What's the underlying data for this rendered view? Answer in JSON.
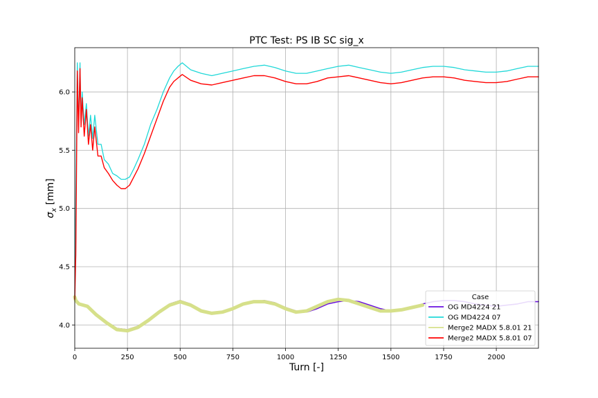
{
  "chart_data": {
    "type": "line",
    "title": "PTC Test: PS IB SC sig_x",
    "xlabel": "Turn [-]",
    "ylabel_main": "σ",
    "ylabel_sub": "x",
    "ylabel_unit": " [mm]",
    "xlim": [
      0,
      2200
    ],
    "ylim": [
      3.8,
      6.38
    ],
    "xticks": [
      0,
      250,
      500,
      750,
      1000,
      1250,
      1500,
      1750,
      2000
    ],
    "yticks": [
      4.0,
      4.5,
      5.0,
      5.5,
      6.0
    ],
    "xtick_labels": [
      "0",
      "250",
      "500",
      "750",
      "1000",
      "1250",
      "1500",
      "1750",
      "2000"
    ],
    "ytick_labels": [
      "4.0",
      "4.5",
      "5.0",
      "5.5",
      "6.0"
    ],
    "grid": true,
    "legend_title": "Case",
    "legend_position": "lower-right",
    "series": [
      {
        "name": "OG MD4224 21",
        "color": "#6a0fe0",
        "x": [
          0,
          5,
          20,
          60,
          100,
          150,
          200,
          250,
          300,
          350,
          400,
          450,
          500,
          550,
          600,
          650,
          700,
          750,
          800,
          850,
          900,
          950,
          1000,
          1050,
          1100,
          1150,
          1200,
          1250,
          1300,
          1350,
          1400,
          1450,
          1500,
          1550,
          1600,
          1650,
          1700,
          1750,
          1800,
          1850,
          1900,
          1950,
          2000,
          2050,
          2100,
          2150,
          2200
        ],
        "y": [
          4.24,
          4.22,
          4.18,
          4.16,
          4.1,
          4.03,
          3.97,
          3.96,
          3.99,
          4.05,
          4.12,
          4.18,
          4.21,
          4.18,
          4.12,
          4.1,
          4.11,
          4.14,
          4.18,
          4.2,
          4.21,
          4.19,
          4.15,
          4.12,
          4.11,
          4.14,
          4.18,
          4.2,
          4.21,
          4.2,
          4.17,
          4.14,
          4.12,
          4.13,
          4.15,
          4.18,
          4.2,
          4.21,
          4.21,
          4.2,
          4.18,
          4.17,
          4.16,
          4.17,
          4.18,
          4.2,
          4.2
        ]
      },
      {
        "name": "OG MD4224 07",
        "color": "#1fd8d8",
        "x": [
          0,
          5,
          12,
          18,
          25,
          30,
          35,
          45,
          55,
          65,
          75,
          85,
          95,
          110,
          125,
          140,
          160,
          180,
          200,
          220,
          240,
          260,
          280,
          300,
          330,
          360,
          390,
          420,
          450,
          470,
          490,
          510,
          550,
          600,
          650,
          700,
          750,
          800,
          850,
          900,
          950,
          1000,
          1050,
          1100,
          1150,
          1200,
          1250,
          1300,
          1350,
          1400,
          1450,
          1500,
          1550,
          1600,
          1650,
          1700,
          1750,
          1800,
          1850,
          1900,
          1950,
          2000,
          2050,
          2100,
          2150,
          2200
        ],
        "y": [
          4.25,
          5.1,
          6.25,
          5.7,
          6.25,
          5.75,
          6.0,
          5.72,
          5.9,
          5.62,
          5.8,
          5.6,
          5.8,
          5.55,
          5.55,
          5.42,
          5.38,
          5.3,
          5.28,
          5.25,
          5.25,
          5.27,
          5.34,
          5.42,
          5.55,
          5.72,
          5.85,
          6.0,
          6.12,
          6.18,
          6.22,
          6.25,
          6.19,
          6.16,
          6.14,
          6.16,
          6.18,
          6.2,
          6.22,
          6.23,
          6.21,
          6.18,
          6.16,
          6.16,
          6.18,
          6.2,
          6.22,
          6.23,
          6.21,
          6.19,
          6.17,
          6.16,
          6.17,
          6.19,
          6.21,
          6.22,
          6.22,
          6.21,
          6.19,
          6.18,
          6.17,
          6.17,
          6.18,
          6.2,
          6.22,
          6.22
        ]
      },
      {
        "name": "Merge2 MADX 5.8.01 21",
        "color": "#d6e08a",
        "x": [
          0,
          5,
          20,
          60,
          100,
          150,
          200,
          250,
          300,
          350,
          400,
          450,
          500,
          550,
          600,
          650,
          700,
          750,
          800,
          850,
          900,
          950,
          1000,
          1050,
          1100,
          1150,
          1200,
          1250,
          1300,
          1350,
          1400,
          1450,
          1500,
          1550,
          1600,
          1650
        ],
        "y": [
          4.24,
          4.21,
          4.18,
          4.16,
          4.09,
          4.02,
          3.96,
          3.95,
          3.98,
          4.04,
          4.11,
          4.17,
          4.2,
          4.17,
          4.12,
          4.1,
          4.11,
          4.14,
          4.18,
          4.2,
          4.2,
          4.18,
          4.14,
          4.11,
          4.12,
          4.16,
          4.2,
          4.22,
          4.21,
          4.18,
          4.15,
          4.12,
          4.12,
          4.13,
          4.15,
          4.17
        ]
      },
      {
        "name": "Merge2 MADX 5.8.01 07",
        "color": "#ff0000",
        "x": [
          0,
          5,
          12,
          18,
          25,
          30,
          35,
          45,
          55,
          65,
          75,
          85,
          95,
          110,
          125,
          140,
          160,
          180,
          200,
          220,
          240,
          260,
          280,
          300,
          330,
          360,
          390,
          420,
          450,
          470,
          490,
          510,
          550,
          600,
          650,
          700,
          750,
          800,
          850,
          900,
          950,
          1000,
          1050,
          1100,
          1150,
          1200,
          1250,
          1300,
          1350,
          1400,
          1450,
          1500,
          1550,
          1600,
          1650,
          1700,
          1750,
          1800,
          1850,
          1900,
          1950,
          2000,
          2050,
          2100,
          2150,
          2200
        ],
        "y": [
          4.22,
          4.6,
          6.18,
          5.65,
          6.2,
          5.7,
          5.95,
          5.62,
          5.85,
          5.55,
          5.72,
          5.5,
          5.7,
          5.45,
          5.45,
          5.35,
          5.3,
          5.24,
          5.2,
          5.17,
          5.17,
          5.2,
          5.27,
          5.34,
          5.47,
          5.62,
          5.77,
          5.92,
          6.04,
          6.09,
          6.12,
          6.15,
          6.1,
          6.07,
          6.06,
          6.08,
          6.1,
          6.12,
          6.14,
          6.14,
          6.12,
          6.09,
          6.07,
          6.07,
          6.09,
          6.12,
          6.13,
          6.14,
          6.12,
          6.1,
          6.08,
          6.07,
          6.08,
          6.1,
          6.12,
          6.13,
          6.13,
          6.12,
          6.1,
          6.09,
          6.08,
          6.08,
          6.09,
          6.11,
          6.13,
          6.13
        ]
      }
    ]
  }
}
